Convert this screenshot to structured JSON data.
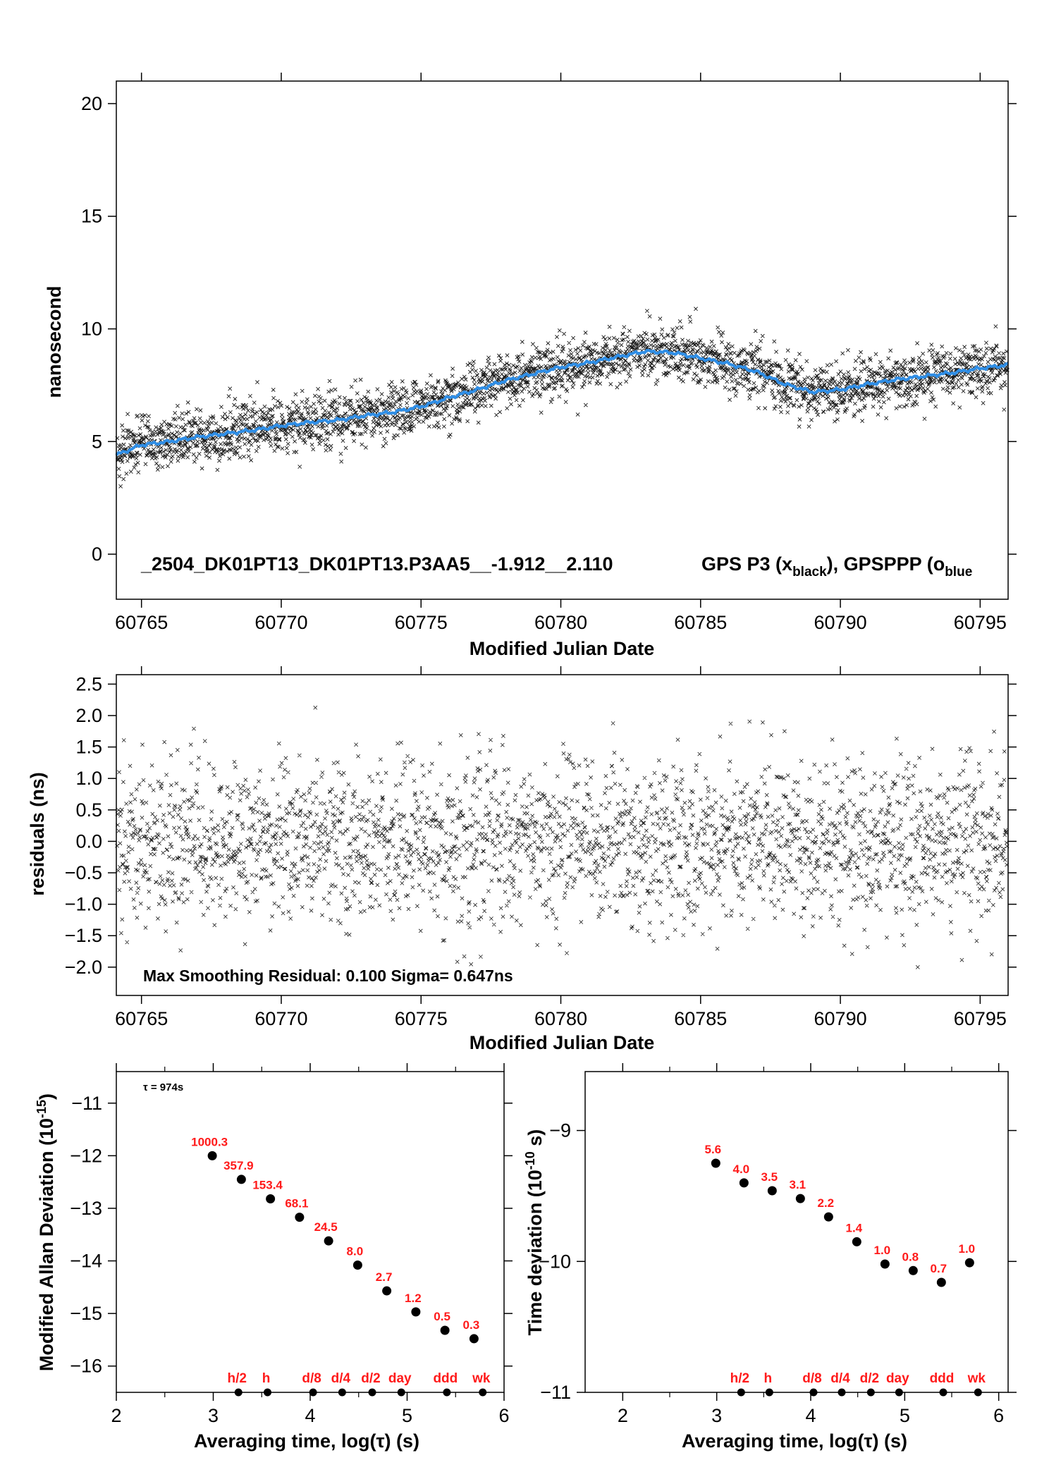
{
  "colors": {
    "smooth": "#2f8ee6",
    "label": "#ff1a1a",
    "axis": "#000000",
    "points": "#000000"
  },
  "chart_data": [
    {
      "id": "top",
      "type": "scatter",
      "ylabel": "nanosecond",
      "xlabel": "Modified Julian Date",
      "xlim": [
        60764.1,
        60796.0
      ],
      "ylim": [
        -2,
        21
      ],
      "xticks": [
        60765,
        60770,
        60775,
        60780,
        60785,
        60790,
        60795
      ],
      "yticks": [
        0,
        5,
        10,
        15,
        20
      ],
      "annotation_id": "_2504_DK01PT13_DK01PT13.P3AA5__-1.912__2.110",
      "annotation_legend": "GPS P3 (x",
      "annotation_legend_sub": "black",
      "annotation_legend_mid": "),  GPSPPP (o",
      "annotation_legend_sub2": "blue",
      "series": [
        {
          "name": "GPS P3",
          "marker": "x",
          "color": "black",
          "points": "dense, ~3000 epochs around the smooth curve, spread ±1 ns"
        },
        {
          "name": "GPSPPP",
          "marker": "o",
          "color": "blue",
          "x": [
            60764.1,
            60765,
            60766,
            60767,
            60768,
            60769,
            60770,
            60771,
            60772,
            60773,
            60774,
            60775,
            60776,
            60777,
            60778,
            60779,
            60780,
            60781,
            60782,
            60783,
            60784,
            60785,
            60786,
            60787,
            60788,
            60789,
            60790,
            60791,
            60792,
            60793,
            60794,
            60795,
            60796
          ],
          "y": [
            4.4,
            4.85,
            5.0,
            5.2,
            5.35,
            5.5,
            5.7,
            5.85,
            5.95,
            6.15,
            6.3,
            6.55,
            6.95,
            7.3,
            7.7,
            8.0,
            8.3,
            8.5,
            8.75,
            9.0,
            8.95,
            8.7,
            8.45,
            8.1,
            7.55,
            7.2,
            7.3,
            7.55,
            7.75,
            7.9,
            8.05,
            8.25,
            8.4
          ]
        }
      ]
    },
    {
      "id": "residuals",
      "type": "scatter",
      "ylabel": "residuals (ns)",
      "xlabel": "Modified Julian Date",
      "xlim": [
        60764.1,
        60796.0
      ],
      "ylim": [
        -2.45,
        2.65
      ],
      "xticks": [
        60765,
        60770,
        60775,
        60780,
        60785,
        60790,
        60795
      ],
      "yticks": [
        -2.0,
        -1.5,
        -1.0,
        -0.5,
        0.0,
        0.5,
        1.0,
        1.5,
        2.0,
        2.5
      ],
      "ytick_labels": [
        "−2.0",
        "−1.5",
        "−1.0",
        "−0.5",
        "0.0",
        "0.5",
        "1.0",
        "1.5",
        "2.0",
        "2.5"
      ],
      "annotation": "Max Smoothing Residual: 0.100  Sigma= 0.647ns",
      "series": [
        {
          "name": "residuals",
          "marker": "x",
          "color": "black",
          "sigma": 0.647
        }
      ]
    },
    {
      "id": "mdev",
      "type": "scatter",
      "ylabel": "Modified Allan Deviation (10",
      "ylabel_sup": "-15",
      "ylabel_end": ")",
      "xlabel": "Averaging time, log(τ) (s)",
      "xlim": [
        2,
        6
      ],
      "ylim": [
        -16.5,
        -10.4
      ],
      "xticks": [
        2,
        3,
        4,
        5,
        6
      ],
      "yticks": [
        -16,
        -15,
        -14,
        -13,
        -12,
        -11
      ],
      "ytick_labels": [
        "−16",
        "−15",
        "−14",
        "−13",
        "−12",
        "−11"
      ],
      "tau_note": "τ = 974s",
      "x": [
        2.99,
        3.29,
        3.59,
        3.89,
        4.19,
        4.49,
        4.79,
        5.09,
        5.39,
        5.69
      ],
      "y": [
        -12.0,
        -12.45,
        -12.82,
        -13.17,
        -13.62,
        -14.08,
        -14.57,
        -14.97,
        -15.32,
        -15.48
      ],
      "labels": [
        "1000.3",
        "357.9",
        "153.4",
        "68.1",
        "24.5",
        "8.0",
        "2.7",
        "1.2",
        "0.5",
        "0.3"
      ],
      "markers_x": [
        3.26,
        3.56,
        4.03,
        4.33,
        4.64,
        4.94,
        5.41,
        5.78
      ],
      "markers": [
        "h/2",
        "h",
        "d/8",
        "d/4",
        "d/2",
        "day",
        "ddd",
        "wk"
      ]
    },
    {
      "id": "tdev",
      "type": "scatter",
      "ylabel": "Time deviation (10",
      "ylabel_sup": "-10",
      "ylabel_end": " s)",
      "xlabel": "Averaging time, log(τ) (s)",
      "xlim": [
        1.6,
        6.1
      ],
      "ylim": [
        -11.0,
        -8.55
      ],
      "xticks": [
        2,
        3,
        4,
        5,
        6
      ],
      "yticks": [
        -11,
        -10,
        -9
      ],
      "ytick_labels": [
        "−11",
        "−10",
        "−9"
      ],
      "x": [
        2.99,
        3.29,
        3.59,
        3.89,
        4.19,
        4.49,
        4.79,
        5.09,
        5.39,
        5.69
      ],
      "y": [
        -9.25,
        -9.4,
        -9.46,
        -9.52,
        -9.66,
        -9.85,
        -10.02,
        -10.07,
        -10.16,
        -10.01
      ],
      "labels": [
        "5.6",
        "4.0",
        "3.5",
        "3.1",
        "2.2",
        "1.4",
        "1.0",
        "0.8",
        "0.7",
        "1.0"
      ],
      "markers_x": [
        3.26,
        3.56,
        4.03,
        4.33,
        4.64,
        4.94,
        5.41,
        5.78
      ],
      "markers": [
        "h/2",
        "h",
        "d/8",
        "d/4",
        "d/2",
        "day",
        "ddd",
        "wk"
      ]
    }
  ]
}
